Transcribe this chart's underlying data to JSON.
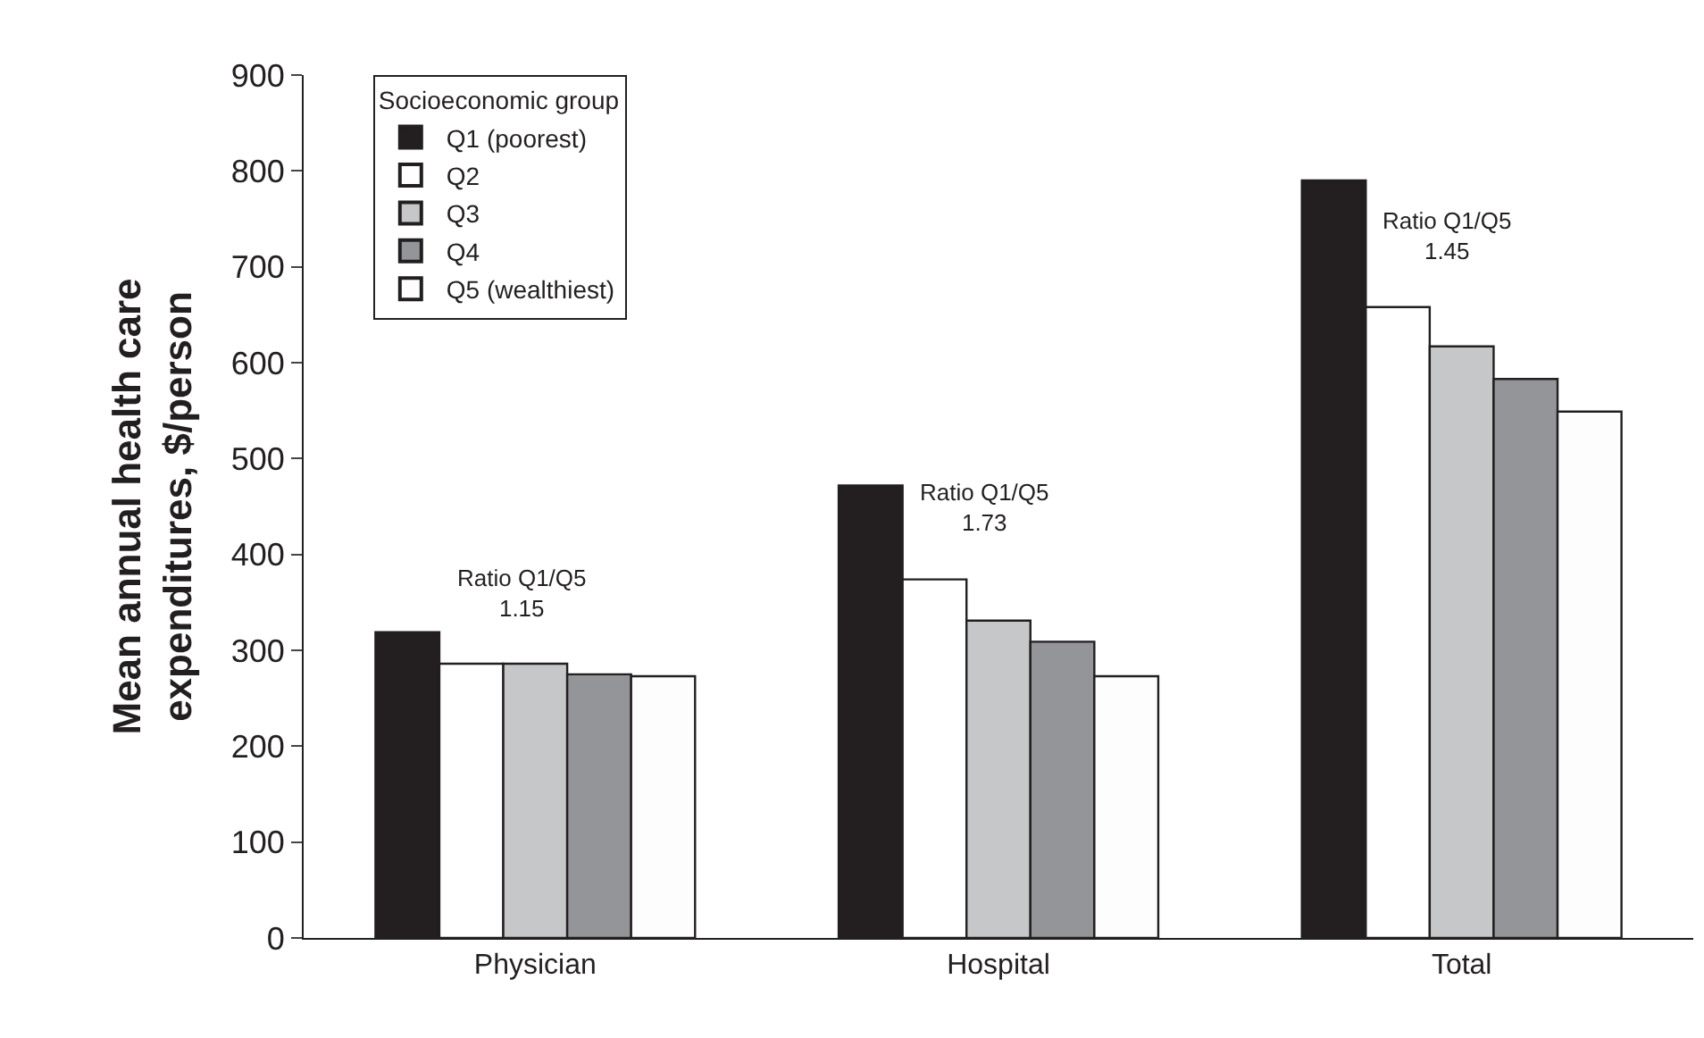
{
  "chart_data": {
    "type": "bar",
    "ylabel": "Mean annual health care\nexpenditures, $/person",
    "legend_title": "Socioeconomic group",
    "categories": [
      "Physician",
      "Hospital",
      "Total"
    ],
    "series": [
      {
        "name": "Q1 (poorest)",
        "color": "#231f20",
        "values": [
          319,
          472,
          790
        ]
      },
      {
        "name": "Q2",
        "color": "#ffffff",
        "values": [
          286,
          374,
          658
        ]
      },
      {
        "name": "Q3",
        "color": "#c6c7c9",
        "values": [
          286,
          331,
          617
        ]
      },
      {
        "name": "Q4",
        "color": "#939598",
        "values": [
          275,
          309,
          583
        ]
      },
      {
        "name": "Q5 (wealthiest)",
        "color": "#fdfdfd",
        "values": [
          273,
          273,
          549
        ]
      }
    ],
    "ylim": [
      0,
      900
    ],
    "yticks": [
      0,
      100,
      200,
      300,
      400,
      500,
      600,
      700,
      800,
      900
    ],
    "legend": "top left",
    "annotations": [
      "Ratio Q1/Q5\n1.15",
      "Ratio Q1/Q5\n1.73",
      "Ratio Q1/Q5\n1.45"
    ]
  }
}
